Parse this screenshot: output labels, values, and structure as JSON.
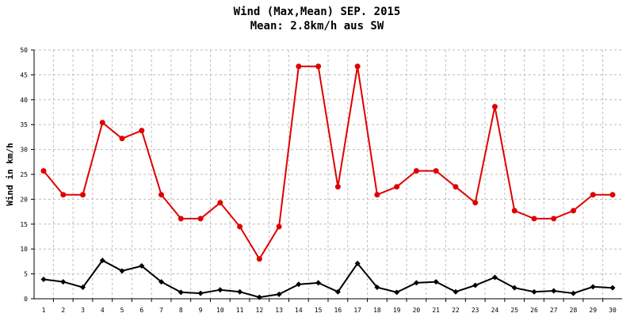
{
  "chart_data": {
    "type": "line",
    "title": "Wind (Max,Mean) SEP. 2015",
    "subtitle": "Mean: 2.8km/h aus SW",
    "ylabel": "Wind in km/h",
    "xlabel": "",
    "ylim": [
      0,
      50
    ],
    "yticks": [
      0,
      5,
      10,
      15,
      20,
      25,
      30,
      35,
      40,
      45,
      50
    ],
    "grid": true,
    "categories": [
      "1",
      "2",
      "3",
      "4",
      "5",
      "6",
      "7",
      "8",
      "9",
      "10",
      "11",
      "12",
      "13",
      "14",
      "15",
      "16",
      "17",
      "18",
      "19",
      "20",
      "21",
      "22",
      "23",
      "24",
      "25",
      "26",
      "27",
      "28",
      "29",
      "30"
    ],
    "series": [
      {
        "color": "#e00000",
        "marker": "circle",
        "values": [
          25.7,
          20.9,
          20.9,
          35.4,
          32.2,
          33.8,
          20.9,
          16.1,
          16.1,
          19.3,
          14.5,
          8.0,
          14.5,
          46.7,
          46.7,
          22.5,
          46.7,
          20.9,
          22.5,
          25.7,
          25.7,
          22.5,
          19.3,
          38.6,
          17.7,
          16.1,
          16.1,
          17.7,
          20.9,
          20.9
        ]
      },
      {
        "color": "#000000",
        "marker": "diamond",
        "values": [
          3.9,
          3.4,
          2.3,
          7.7,
          5.6,
          6.6,
          3.4,
          1.3,
          1.1,
          1.8,
          1.4,
          0.3,
          0.9,
          2.9,
          3.2,
          1.4,
          7.1,
          2.3,
          1.3,
          3.2,
          3.4,
          1.4,
          2.7,
          4.3,
          2.2,
          1.4,
          1.6,
          1.1,
          2.4,
          2.2
        ]
      }
    ]
  }
}
